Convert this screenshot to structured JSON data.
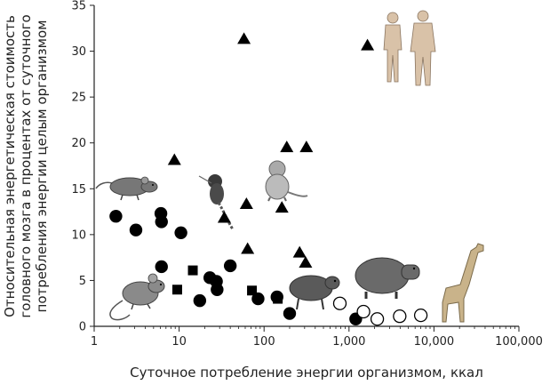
{
  "chart_data": {
    "type": "scatter",
    "title": "",
    "xlabel": "Суточное потребление энергии организмом, ккал",
    "ylabel_lines": [
      "Относительная энергетическая стоимость",
      "головного мозга в процентах от суточного",
      "потребления энергии целым организмом"
    ],
    "x_scale": "log",
    "xlim": [
      1,
      100000
    ],
    "ylim": [
      0,
      35
    ],
    "x_ticks": [
      1,
      10,
      100,
      1000,
      10000,
      100000
    ],
    "x_tick_labels": [
      "1",
      "10",
      "100",
      "1,000",
      "10,000",
      "100,000"
    ],
    "y_ticks": [
      0,
      5,
      10,
      15,
      20,
      25,
      30,
      35
    ],
    "y_tick_labels": [
      "0",
      "5",
      "10",
      "15",
      "20",
      "25",
      "30",
      "35"
    ],
    "grid": false,
    "colors": {
      "marker": "#000000",
      "axis": "#222222"
    },
    "series": [
      {
        "marker": "filled-circle",
        "points": [
          {
            "x": 1.8,
            "y": 12
          },
          {
            "x": 3.1,
            "y": 10.5
          },
          {
            "x": 6.1,
            "y": 12.3
          },
          {
            "x": 6.2,
            "y": 11.4
          },
          {
            "x": 6.2,
            "y": 6.5
          },
          {
            "x": 10.5,
            "y": 10.2
          },
          {
            "x": 17.5,
            "y": 2.8
          },
          {
            "x": 23,
            "y": 5.3
          },
          {
            "x": 27.5,
            "y": 4.9
          },
          {
            "x": 28,
            "y": 4.0
          },
          {
            "x": 40,
            "y": 6.6
          },
          {
            "x": 85,
            "y": 3.0
          },
          {
            "x": 142,
            "y": 3.2
          },
          {
            "x": 200,
            "y": 1.4
          },
          {
            "x": 1200,
            "y": 0.8
          }
        ]
      },
      {
        "marker": "filled-square",
        "points": [
          {
            "x": 9.5,
            "y": 4.0
          },
          {
            "x": 14.5,
            "y": 6.1
          },
          {
            "x": 72,
            "y": 3.9
          },
          {
            "x": 145,
            "y": 3.0
          }
        ]
      },
      {
        "marker": "filled-triangle",
        "points": [
          {
            "x": 58,
            "y": 31.3
          },
          {
            "x": 8.8,
            "y": 18.1
          },
          {
            "x": 34,
            "y": 11.8
          },
          {
            "x": 62,
            "y": 13.3
          },
          {
            "x": 64,
            "y": 8.4
          },
          {
            "x": 162,
            "y": 12.9
          },
          {
            "x": 185,
            "y": 19.5
          },
          {
            "x": 315,
            "y": 19.5
          },
          {
            "x": 262,
            "y": 8.0
          },
          {
            "x": 308,
            "y": 6.9
          },
          {
            "x": 1650,
            "y": 30.6
          }
        ]
      },
      {
        "marker": "open-circle",
        "points": [
          {
            "x": 780,
            "y": 2.5
          },
          {
            "x": 1480,
            "y": 1.6
          },
          {
            "x": 2150,
            "y": 0.8
          },
          {
            "x": 3950,
            "y": 1.1
          },
          {
            "x": 7000,
            "y": 1.2
          }
        ]
      }
    ],
    "illustrations": [
      "rat-icon",
      "mouse-icon",
      "tamarin-icon",
      "macaque-icon",
      "agouti-icon",
      "capybara-icon",
      "giraffe-icon",
      "humans-icon"
    ]
  }
}
